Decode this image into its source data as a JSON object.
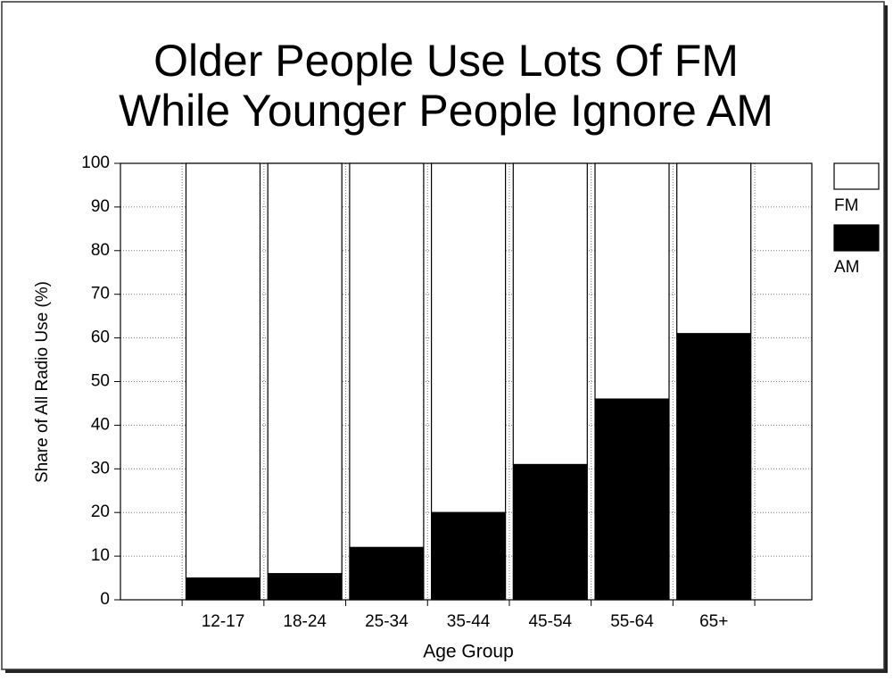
{
  "chart_data": {
    "type": "stacked_bar",
    "title": "Older People Use Lots Of FM",
    "subtitle": "While Younger People Ignore AM",
    "x_label": "Age Group",
    "y_label": "Share of All Radio Use (%)",
    "categories": [
      "12-17",
      "18-24",
      "25-34",
      "35-44",
      "45-54",
      "55-64",
      "65+"
    ],
    "series": [
      {
        "name": "AM",
        "color": "#000000",
        "values": [
          5,
          6,
          12,
          20,
          31,
          46,
          61
        ]
      },
      {
        "name": "FM",
        "color": "#ffffff",
        "values": [
          95,
          94,
          88,
          80,
          69,
          54,
          39
        ]
      }
    ],
    "ylim": [
      0,
      100
    ],
    "yticks": [
      0,
      10,
      20,
      30,
      40,
      50,
      60,
      70,
      80,
      90,
      100
    ],
    "grid": true,
    "legend": "right"
  }
}
